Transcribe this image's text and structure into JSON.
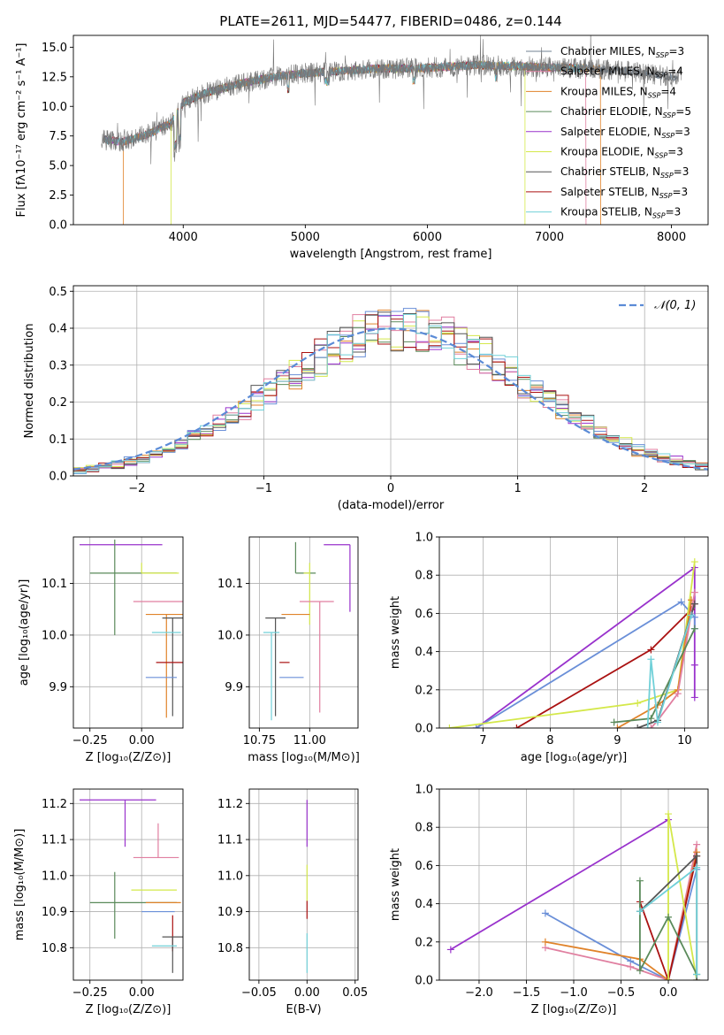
{
  "chart_data": [
    {
      "id": "spectrum",
      "type": "line",
      "title": "PLATE=2611, MJD=54477, FIBERID=0486, z=0.144",
      "xlabel": "wavelength [Angstrom, rest frame]",
      "ylabel": "Flux [fλ10⁻¹⁷ erg cm⁻² s⁻¹ A⁻¹]",
      "xlim": [
        3100,
        8300
      ],
      "ylim": [
        0,
        16
      ],
      "xticks": [
        4000,
        5000,
        6000,
        7000,
        8000
      ],
      "yticks": [
        0.0,
        2.5,
        5.0,
        7.5,
        10.0,
        12.5,
        15.0
      ],
      "grid": false,
      "legend": "right",
      "series": [
        {
          "name": "Chabrier MILES, N_SSP=3",
          "color": "#708090"
        },
        {
          "name": "Salpeter MILES, N_SSP=4",
          "color": "#e07fa0"
        },
        {
          "name": "Kroupa MILES, N_SSP=4",
          "color": "#e0832a"
        },
        {
          "name": "Chabrier ELODIE, N_SSP=5",
          "color": "#5a8a5a"
        },
        {
          "name": "Salpeter ELODIE, N_SSP=3",
          "color": "#9932cc"
        },
        {
          "name": "Kroupa ELODIE, N_SSP=3",
          "color": "#d4e84a"
        },
        {
          "name": "Chabrier STELIB, N_SSP=3",
          "color": "#555555"
        },
        {
          "name": "Salpeter STELIB, N_SSP=3",
          "color": "#aa1111"
        },
        {
          "name": "Kroupa STELIB, N_SSP=3",
          "color": "#70d0d8"
        }
      ],
      "continuum": {
        "x": [
          3350,
          3500,
          3700,
          3900,
          4000,
          4200,
          4500,
          4800,
          5000,
          5300,
          5600,
          5900,
          6100,
          6400,
          6700,
          7000,
          7300,
          7600,
          8000
        ],
        "y": [
          7.2,
          7.0,
          7.6,
          8.6,
          10.3,
          11.2,
          12.0,
          12.6,
          12.8,
          13.0,
          13.2,
          13.2,
          13.3,
          13.5,
          13.4,
          13.3,
          13.2,
          13.0,
          12.5
        ]
      }
    },
    {
      "id": "residual-hist",
      "type": "bar",
      "xlabel": "(data-model)/error",
      "ylabel": "Normed distribution",
      "xlim": [
        -2.5,
        2.5
      ],
      "ylim": [
        0,
        0.515
      ],
      "xticks": [
        -2,
        -1,
        0,
        1,
        2
      ],
      "yticks": [
        0.0,
        0.1,
        0.2,
        0.3,
        0.4,
        0.5
      ],
      "grid": true,
      "legend": "top-right",
      "reference": "𝒩(0, 1)",
      "bin_width": 0.1,
      "bin_start": -2.5
    },
    {
      "id": "age-vs-z",
      "type": "scatter",
      "xlabel": "Z [log₁₀(Z/Z⊙)]",
      "ylabel": "age  [log₁₀(age/yr)]",
      "xlim": [
        -0.33,
        0.2
      ],
      "ylim": [
        9.82,
        10.19
      ],
      "xticks": [
        -0.25,
        0.0
      ],
      "yticks": [
        9.9,
        10.0,
        10.1
      ],
      "grid": true,
      "errorbars": [
        {
          "x": -0.1,
          "y": 10.175,
          "xerr": [
            0.2,
            0.2
          ],
          "yerr": [
            0.0,
            0.0
          ],
          "color": "#9932cc"
        },
        {
          "x": -0.13,
          "y": 10.12,
          "xerr": [
            0.12,
            0.3
          ],
          "yerr": [
            0.12,
            0.065
          ],
          "color": "#5a8a5a"
        },
        {
          "x": 0.0,
          "y": 10.12,
          "xerr": [
            0.0,
            0.18
          ],
          "yerr": [
            0.0,
            0.02
          ],
          "color": "#d4e84a"
        },
        {
          "x": 0.08,
          "y": 10.065,
          "xerr": [
            0.12,
            0.12
          ],
          "yerr": [
            0.0,
            0.0
          ],
          "color": "#e07fa0"
        },
        {
          "x": 0.12,
          "y": 10.04,
          "xerr": [
            0.1,
            0.08
          ],
          "yerr": [
            0.2,
            0.0
          ],
          "color": "#e0832a"
        },
        {
          "x": 0.15,
          "y": 10.033,
          "xerr": [
            0.05,
            0.05
          ],
          "yerr": [
            0.19,
            0.0
          ],
          "color": "#555555"
        },
        {
          "x": 0.1,
          "y": 10.005,
          "xerr": [
            0.05,
            0.09
          ],
          "yerr": [
            0.0,
            0.0
          ],
          "color": "#70d0d8"
        },
        {
          "x": 0.15,
          "y": 9.947,
          "xerr": [
            0.08,
            0.05
          ],
          "yerr": [
            0.0,
            0.0
          ],
          "color": "#aa1111"
        },
        {
          "x": 0.12,
          "y": 9.918,
          "xerr": [
            0.1,
            0.05
          ],
          "yerr": [
            0.0,
            0.0
          ],
          "color": "#6a8fd8"
        }
      ]
    },
    {
      "id": "age-vs-mass",
      "type": "scatter",
      "xlabel": "mass [log₁₀(M/M⊙)]",
      "ylabel": "",
      "xlim": [
        10.7,
        11.24
      ],
      "ylim": [
        9.82,
        10.19
      ],
      "xticks": [
        10.75,
        11.0
      ],
      "yticks": [
        9.9,
        10.0,
        10.1
      ],
      "grid": true,
      "errorbars": [
        {
          "x": 11.2,
          "y": 10.175,
          "xerr": [
            0.13,
            0.0
          ],
          "yerr": [
            0.13,
            0.0
          ],
          "color": "#9932cc"
        },
        {
          "x": 10.93,
          "y": 10.12,
          "xerr": [
            0.0,
            0.1
          ],
          "yerr": [
            0.0,
            0.06
          ],
          "color": "#5a8a5a"
        },
        {
          "x": 11.0,
          "y": 10.12,
          "xerr": [
            0.03,
            0.0
          ],
          "yerr": [
            0.1,
            0.02
          ],
          "color": "#d4e84a"
        },
        {
          "x": 11.05,
          "y": 10.065,
          "xerr": [
            0.1,
            0.07
          ],
          "yerr": [
            0.215,
            0.0
          ],
          "color": "#e07fa0"
        },
        {
          "x": 10.93,
          "y": 10.04,
          "xerr": [
            0.07,
            0.07
          ],
          "yerr": [
            0.0,
            0.0
          ],
          "color": "#e0832a"
        },
        {
          "x": 10.83,
          "y": 10.033,
          "xerr": [
            0.05,
            0.05
          ],
          "yerr": [
            0.19,
            0.0
          ],
          "color": "#555555"
        },
        {
          "x": 10.81,
          "y": 10.005,
          "xerr": [
            0.04,
            0.04
          ],
          "yerr": [
            0.17,
            0.0
          ],
          "color": "#70d0d8"
        },
        {
          "x": 10.9,
          "y": 9.947,
          "xerr": [
            0.05,
            0.0
          ],
          "yerr": [
            0.0,
            0.0
          ],
          "color": "#aa1111"
        },
        {
          "x": 10.9,
          "y": 9.918,
          "xerr": [
            0.05,
            0.07
          ],
          "yerr": [
            0.0,
            0.0
          ],
          "color": "#6a8fd8"
        }
      ]
    },
    {
      "id": "massweight-vs-age",
      "type": "line",
      "xlabel": "age  [log₁₀(age/yr)]",
      "ylabel": "mass weight",
      "xlim": [
        6.35,
        10.35
      ],
      "ylim": [
        0.0,
        1.0
      ],
      "xticks": [
        7,
        8,
        9,
        10
      ],
      "yticks": [
        0.0,
        0.2,
        0.4,
        0.6,
        0.8,
        1.0
      ],
      "grid": true,
      "series": [
        {
          "color": "#9932cc",
          "x": [
            6.9,
            10.15,
            10.15,
            10.15
          ],
          "y": [
            0.0,
            0.84,
            0.33,
            0.16
          ]
        },
        {
          "color": "#6a8fd8",
          "x": [
            6.9,
            9.95,
            10.15,
            10.15
          ],
          "y": [
            0.0,
            0.66,
            0.58,
            0.52
          ]
        },
        {
          "color": "#aa1111",
          "x": [
            7.5,
            9.5,
            10.1,
            10.15
          ],
          "y": [
            0.0,
            0.41,
            0.62,
            0.65
          ]
        },
        {
          "color": "#d4e84a",
          "x": [
            6.5,
            9.3,
            9.9,
            10.15
          ],
          "y": [
            0.0,
            0.13,
            0.2,
            0.87
          ]
        },
        {
          "color": "#e0832a",
          "x": [
            9.0,
            9.6,
            9.9,
            10.1
          ],
          "y": [
            0.0,
            0.12,
            0.2,
            0.67
          ]
        },
        {
          "color": "#e07fa0",
          "x": [
            9.5,
            9.6,
            9.9,
            10.15
          ],
          "y": [
            0.0,
            0.04,
            0.18,
            0.71
          ]
        },
        {
          "color": "#555555",
          "x": [
            9.3,
            9.6,
            10.15
          ],
          "y": [
            0.0,
            0.04,
            0.65
          ]
        },
        {
          "color": "#5a8a5a",
          "x": [
            8.95,
            9.5,
            10.15
          ],
          "y": [
            0.03,
            0.05,
            0.52
          ]
        },
        {
          "color": "#70d0d8",
          "x": [
            9.45,
            9.5,
            9.6,
            10.1
          ],
          "y": [
            0.0,
            0.36,
            0.03,
            0.59
          ]
        }
      ]
    },
    {
      "id": "mass-vs-z",
      "type": "scatter",
      "xlabel": "Z [log₁₀(Z/Z⊙)]",
      "ylabel": "mass [log₁₀(M/M⊙)]",
      "xlim": [
        -0.33,
        0.2
      ],
      "ylim": [
        10.71,
        11.24
      ],
      "xticks": [
        -0.25,
        0.0
      ],
      "yticks": [
        10.8,
        10.9,
        11.0,
        11.1,
        11.2
      ],
      "grid": true,
      "errorbars": [
        {
          "x": -0.08,
          "y": 11.21,
          "xerr": [
            0.22,
            0.15
          ],
          "yerr": [
            0.13,
            0.0
          ],
          "color": "#9932cc"
        },
        {
          "x": 0.08,
          "y": 11.05,
          "xerr": [
            0.12,
            0.1
          ],
          "yerr": [
            0.0,
            0.095
          ],
          "color": "#e07fa0"
        },
        {
          "x": 0.05,
          "y": 10.96,
          "xerr": [
            0.1,
            0.12
          ],
          "yerr": [
            0.0,
            0.0
          ],
          "color": "#d4e84a"
        },
        {
          "x": -0.13,
          "y": 10.925,
          "xerr": [
            0.12,
            0.3
          ],
          "yerr": [
            0.1,
            0.085
          ],
          "color": "#5a8a5a"
        },
        {
          "x": 0.12,
          "y": 10.925,
          "xerr": [
            0.1,
            0.07
          ],
          "yerr": [
            0.0,
            0.0
          ],
          "color": "#e0832a"
        },
        {
          "x": 0.1,
          "y": 10.9,
          "xerr": [
            0.1,
            0.06
          ],
          "yerr": [
            0.0,
            0.0
          ],
          "color": "#6a8fd8"
        },
        {
          "x": 0.15,
          "y": 10.89,
          "xerr": [
            0.0,
            0.0
          ],
          "yerr": [
            0.1,
            0.0
          ],
          "color": "#aa1111"
        },
        {
          "x": 0.15,
          "y": 10.83,
          "xerr": [
            0.05,
            0.05
          ],
          "yerr": [
            0.1,
            0.0
          ],
          "color": "#555555"
        },
        {
          "x": 0.12,
          "y": 10.805,
          "xerr": [
            0.07,
            0.05
          ],
          "yerr": [
            0.0,
            0.0
          ],
          "color": "#70d0d8"
        }
      ]
    },
    {
      "id": "mass-vs-ebv",
      "type": "scatter",
      "xlabel": "E(B-V)",
      "ylabel": "",
      "xlim": [
        -0.06,
        0.053
      ],
      "ylim": [
        10.71,
        11.24
      ],
      "xticks": [
        -0.05,
        0.0,
        0.05
      ],
      "yticks": [
        10.8,
        10.9,
        11.0,
        11.1,
        11.2
      ],
      "grid": true,
      "errorbars": [
        {
          "x": 0.0,
          "y": 11.21,
          "xerr": [
            0.0,
            0.0
          ],
          "yerr": [
            0.13,
            0.0
          ],
          "color": "#9932cc"
        },
        {
          "x": 0.0,
          "y": 11.03,
          "xerr": [
            0.0,
            0.0
          ],
          "yerr": [
            0.1,
            0.0
          ],
          "color": "#d4e84a"
        },
        {
          "x": 0.0,
          "y": 10.93,
          "xerr": [
            0.0,
            0.0
          ],
          "yerr": [
            0.05,
            0.0
          ],
          "color": "#aa1111"
        },
        {
          "x": 0.0,
          "y": 10.84,
          "xerr": [
            0.0,
            0.0
          ],
          "yerr": [
            0.11,
            0.0
          ],
          "color": "#70d0d8"
        }
      ]
    },
    {
      "id": "massweight-vs-z",
      "type": "line",
      "xlabel": "Z [log₁₀(Z/Z⊙)]",
      "ylabel": "mass weight",
      "xlim": [
        -2.42,
        0.42
      ],
      "ylim": [
        0.0,
        1.0
      ],
      "xticks": [
        -2.0,
        -1.5,
        -1.0,
        -0.5,
        0.0
      ],
      "yticks": [
        0.0,
        0.2,
        0.4,
        0.6,
        0.8,
        1.0
      ],
      "grid": true,
      "series": [
        {
          "color": "#9932cc",
          "x": [
            -2.3,
            0.0
          ],
          "y": [
            0.16,
            0.84
          ]
        },
        {
          "color": "#6a8fd8",
          "x": [
            -1.3,
            -0.4,
            0.0,
            0.3
          ],
          "y": [
            0.35,
            0.1,
            0.0,
            0.58
          ]
        },
        {
          "color": "#e07fa0",
          "x": [
            -1.3,
            -0.4,
            0.0,
            0.3
          ],
          "y": [
            0.17,
            0.07,
            0.0,
            0.71
          ]
        },
        {
          "color": "#e0832a",
          "x": [
            -1.3,
            -0.3,
            0.0,
            0.3
          ],
          "y": [
            0.2,
            0.11,
            0.0,
            0.67
          ]
        },
        {
          "color": "#aa1111",
          "x": [
            -0.3,
            0.0,
            0.3
          ],
          "y": [
            0.41,
            0.0,
            0.65
          ]
        },
        {
          "color": "#d4e84a",
          "x": [
            0.0,
            0.0,
            0.3
          ],
          "y": [
            0.0,
            0.87,
            0.0
          ]
        },
        {
          "color": "#555555",
          "x": [
            -0.3,
            0.3,
            0.3
          ],
          "y": [
            0.36,
            0.65,
            0.0
          ]
        },
        {
          "color": "#5a8a5a",
          "x": [
            -0.3,
            -0.3,
            0.0,
            0.3
          ],
          "y": [
            0.52,
            0.05,
            0.33,
            0.03
          ]
        },
        {
          "color": "#70d0d8",
          "x": [
            -0.3,
            0.3,
            0.3
          ],
          "y": [
            0.36,
            0.59,
            0.03
          ]
        }
      ]
    }
  ]
}
